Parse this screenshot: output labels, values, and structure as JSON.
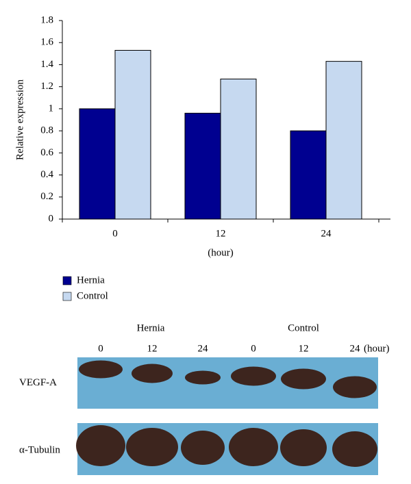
{
  "chart_data": {
    "type": "bar",
    "y_label": "Relative expression",
    "x_label": "(hour)",
    "categories": [
      "0",
      "12",
      "24"
    ],
    "series": [
      {
        "name": "Hernia",
        "color": "#000090",
        "values": [
          1.0,
          0.96,
          0.8
        ]
      },
      {
        "name": "Control",
        "color": "#c6d9f0",
        "values": [
          1.53,
          1.27,
          1.43
        ]
      }
    ],
    "ylim": [
      0,
      1.8
    ],
    "yticks": [
      0,
      0.2,
      0.4,
      0.6,
      0.8,
      1,
      1.2,
      1.4,
      1.6,
      1.8
    ]
  },
  "blot": {
    "groups": [
      "Hernia",
      "Control"
    ],
    "lanes": [
      "0",
      "12",
      "24",
      "0",
      "12",
      "24"
    ],
    "unit": "(hour)",
    "rows": [
      "VEGF-A",
      "α-Tubulin"
    ]
  }
}
